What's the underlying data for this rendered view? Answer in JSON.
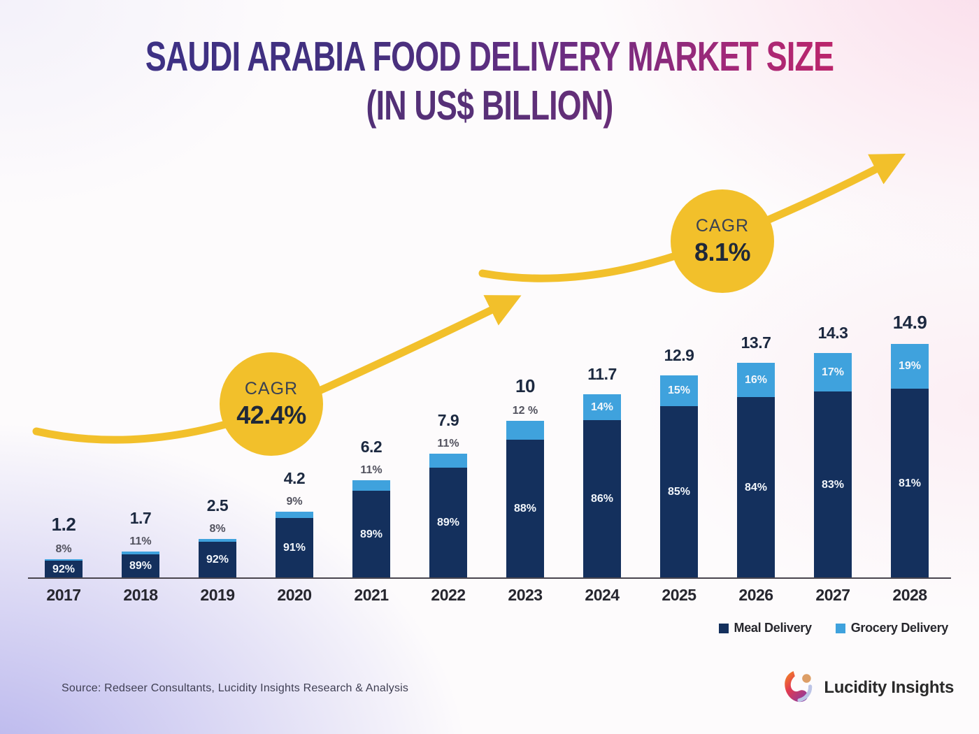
{
  "title": {
    "line1": "SAUDI ARABIA FOOD DELIVERY MARKET SIZE",
    "line2": "(IN US$ BILLION)"
  },
  "annotations": [
    {
      "label": "CAGR",
      "value": "42.4%"
    },
    {
      "label": "CAGR",
      "value": "8.1%"
    }
  ],
  "legend": [
    {
      "label": "Meal Delivery",
      "color": "#14305d"
    },
    {
      "label": "Grocery Delivery",
      "color": "#3fa2dd"
    }
  ],
  "footer": {
    "source": "Source: Redseer Consultants, Lucidity Insights Research & Analysis",
    "brand": "Lucidity Insights"
  },
  "colors": {
    "meal": "#14305d",
    "grocery": "#3fa2dd",
    "accent_yellow": "#f2c02b",
    "title_gradient_start": "#3c3186",
    "title_gradient_end": "#c62364"
  },
  "chart_data": {
    "type": "bar",
    "stacked": true,
    "title": "Saudi Arabia Food Delivery Market Size (in US$ Billion)",
    "unit": "US$ Billion",
    "ylim": [
      0,
      16
    ],
    "grid": false,
    "legend_position": "bottom-right",
    "categories": [
      "2017",
      "2018",
      "2019",
      "2020",
      "2021",
      "2022",
      "2023",
      "2024",
      "2025",
      "2026",
      "2027",
      "2028"
    ],
    "totals": [
      1.2,
      1.7,
      2.5,
      4.2,
      6.2,
      7.9,
      10,
      11.7,
      12.9,
      13.7,
      14.3,
      14.9
    ],
    "total_labels": [
      "1.2",
      "1.7",
      "2.5",
      "4.2",
      "6.2",
      "7.9",
      "10",
      "11.7",
      "12.9",
      "13.7",
      "14.3",
      "14.9"
    ],
    "bold_totals": [
      true,
      false,
      false,
      false,
      false,
      false,
      true,
      false,
      false,
      false,
      false,
      true
    ],
    "series": [
      {
        "name": "Meal Delivery",
        "pct": [
          92,
          89,
          92,
          91,
          89,
          89,
          88,
          86,
          85,
          84,
          83,
          81
        ],
        "labels": [
          "92%",
          "89%",
          "92%",
          "91%",
          "89%",
          "89%",
          "88%",
          "86%",
          "85%",
          "84%",
          "83%",
          "81%"
        ]
      },
      {
        "name": "Grocery Delivery",
        "pct": [
          8,
          11,
          8,
          9,
          11,
          11,
          12,
          14,
          15,
          16,
          17,
          19
        ],
        "labels": [
          "8%",
          "11%",
          "8%",
          "9%",
          "11%",
          "11%",
          "12 %",
          "14%",
          "15%",
          "16%",
          "17%",
          "19%"
        ]
      }
    ],
    "grocery_label_position": [
      "above",
      "above",
      "above",
      "above",
      "above",
      "above",
      "above",
      "inside",
      "inside",
      "inside",
      "inside",
      "inside"
    ],
    "cagr_annotations": [
      {
        "label": "CAGR",
        "value": "42.4%"
      },
      {
        "label": "CAGR",
        "value": "8.1%"
      }
    ]
  }
}
